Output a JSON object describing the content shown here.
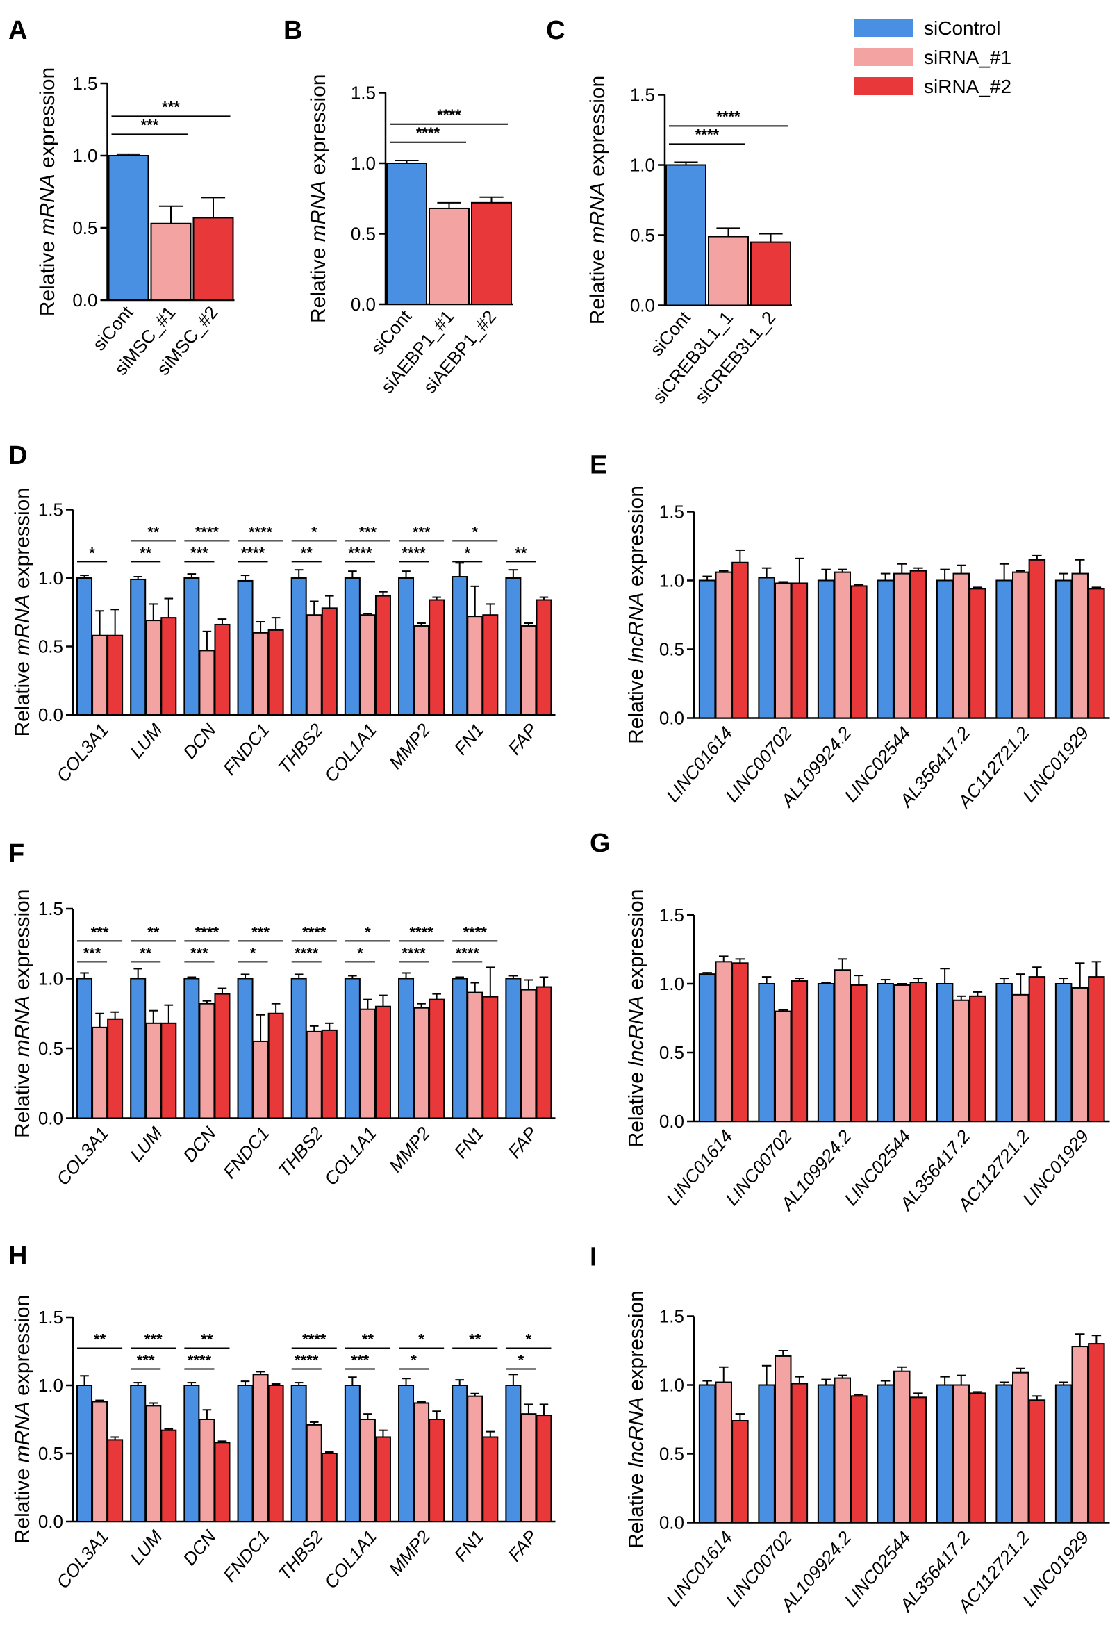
{
  "legend": {
    "items": [
      {
        "label": "siControl",
        "color": "#4a90e2"
      },
      {
        "label": "siRNA_#1",
        "color": "#f4a3a3"
      },
      {
        "label": "siRNA_#2",
        "color": "#e8383a"
      }
    ]
  },
  "colors": {
    "control": "#4a90e2",
    "si1": "#f4a3a3",
    "si2": "#e8383a"
  },
  "chart_data": [
    {
      "id": "A",
      "type": "bar",
      "ylabel_pre": "Relative ",
      "ylabel_it": "mRNA",
      "ylabel_post": " expression",
      "ylim": [
        0,
        1.5
      ],
      "yticks": [
        "0.0",
        "0.5",
        "1.0",
        "1.5"
      ],
      "categories": [
        "siCont",
        "siMSC_#1",
        "siMSC_#2"
      ],
      "values": [
        1.0,
        0.53,
        0.57
      ],
      "errors": [
        0.01,
        0.12,
        0.14
      ],
      "sig": [
        {
          "from": 0,
          "to": 1,
          "text": "***"
        },
        {
          "from": 0,
          "to": 2,
          "text": "***"
        }
      ]
    },
    {
      "id": "B",
      "type": "bar",
      "ylabel_pre": "Relative ",
      "ylabel_it": "mRNA",
      "ylabel_post": " expression",
      "ylim": [
        0,
        1.5
      ],
      "yticks": [
        "0.0",
        "0.5",
        "1.0",
        "1.5"
      ],
      "categories": [
        "siCont",
        "siAEBP1_#1",
        "siAEBP1_#2"
      ],
      "values": [
        1.0,
        0.68,
        0.72
      ],
      "errors": [
        0.02,
        0.04,
        0.04
      ],
      "sig": [
        {
          "from": 0,
          "to": 1,
          "text": "****"
        },
        {
          "from": 0,
          "to": 2,
          "text": "****"
        }
      ]
    },
    {
      "id": "C",
      "type": "bar",
      "ylabel_pre": "Relative ",
      "ylabel_it": "mRNA",
      "ylabel_post": " expression",
      "ylim": [
        0,
        1.5
      ],
      "yticks": [
        "0.0",
        "0.5",
        "1.0",
        "1.5"
      ],
      "categories": [
        "siCont",
        "siCREB3L1_1",
        "siCREB3L1_2"
      ],
      "values": [
        1.0,
        0.49,
        0.45
      ],
      "errors": [
        0.02,
        0.06,
        0.06
      ],
      "sig": [
        {
          "from": 0,
          "to": 1,
          "text": "****"
        },
        {
          "from": 0,
          "to": 2,
          "text": "****"
        }
      ]
    },
    {
      "id": "D",
      "type": "bar",
      "ylabel_pre": "Relative ",
      "ylabel_it": "mRNA",
      "ylabel_post": " expression",
      "ylim": [
        0,
        1.5
      ],
      "yticks": [
        "0.0",
        "0.5",
        "1.0",
        "1.5"
      ],
      "categories": [
        "COL3A1",
        "LUM",
        "DCN",
        "FNDC1",
        "THBS2",
        "COL1A1",
        "MMP2",
        "FN1",
        "FAP"
      ],
      "series": [
        {
          "name": "siControl",
          "values": [
            1.0,
            0.99,
            1.0,
            0.98,
            1.0,
            1.0,
            1.0,
            1.01,
            1.0
          ],
          "errors": [
            0.02,
            0.02,
            0.03,
            0.04,
            0.06,
            0.05,
            0.05,
            0.1,
            0.06
          ]
        },
        {
          "name": "siRNA_#1",
          "values": [
            0.58,
            0.69,
            0.47,
            0.6,
            0.73,
            0.73,
            0.65,
            0.72,
            0.65
          ],
          "errors": [
            0.18,
            0.12,
            0.14,
            0.08,
            0.1,
            0.01,
            0.02,
            0.22,
            0.02
          ]
        },
        {
          "name": "siRNA_#2",
          "values": [
            0.58,
            0.71,
            0.66,
            0.62,
            0.78,
            0.87,
            0.84,
            0.73,
            0.84
          ],
          "errors": [
            0.19,
            0.14,
            0.04,
            0.09,
            0.09,
            0.03,
            0.02,
            0.08,
            0.02
          ]
        }
      ],
      "sig": [
        {
          "cat": 0,
          "s1": "*",
          "s2": ""
        },
        {
          "cat": 1,
          "s1": "**",
          "s2": "**"
        },
        {
          "cat": 2,
          "s1": "***",
          "s2": "****"
        },
        {
          "cat": 3,
          "s1": "****",
          "s2": "****"
        },
        {
          "cat": 4,
          "s1": "**",
          "s2": "*"
        },
        {
          "cat": 5,
          "s1": "****",
          "s2": "***"
        },
        {
          "cat": 6,
          "s1": "****",
          "s2": "***"
        },
        {
          "cat": 7,
          "s1": "*",
          "s2": "*"
        },
        {
          "cat": 8,
          "s1": "**",
          "s2": ""
        }
      ]
    },
    {
      "id": "E",
      "type": "bar",
      "ylabel_pre": "Relative ",
      "ylabel_it": "lncRNA",
      "ylabel_post": " expression",
      "ylim": [
        0,
        1.5
      ],
      "yticks": [
        "0.0",
        "0.5",
        "1.0",
        "1.5"
      ],
      "categories": [
        "LINC01614",
        "LINC00702",
        "AL109924.2",
        "LINC02544",
        "AL356417.2",
        "AC112721.2",
        "LINC01929"
      ],
      "series": [
        {
          "name": "siControl",
          "values": [
            1.0,
            1.02,
            1.0,
            1.0,
            1.0,
            1.0,
            1.0
          ],
          "errors": [
            0.03,
            0.07,
            0.08,
            0.05,
            0.08,
            0.12,
            0.05
          ]
        },
        {
          "name": "siRNA_#1",
          "values": [
            1.06,
            0.98,
            1.06,
            1.05,
            1.05,
            1.06,
            1.05
          ],
          "errors": [
            0.01,
            0.01,
            0.02,
            0.07,
            0.06,
            0.01,
            0.1
          ]
        },
        {
          "name": "siRNA_#2",
          "values": [
            1.13,
            0.98,
            0.96,
            1.07,
            0.94,
            1.15,
            0.94
          ],
          "errors": [
            0.09,
            0.18,
            0.01,
            0.02,
            0.01,
            0.03,
            0.01
          ]
        }
      ],
      "sig": []
    },
    {
      "id": "F",
      "type": "bar",
      "ylabel_pre": "Relative ",
      "ylabel_it": "mRNA",
      "ylabel_post": " expression",
      "ylim": [
        0,
        1.5
      ],
      "yticks": [
        "0.0",
        "0.5",
        "1.0",
        "1.5"
      ],
      "categories": [
        "COL3A1",
        "LUM",
        "DCN",
        "FNDC1",
        "THBS2",
        "COL1A1",
        "MMP2",
        "FN1",
        "FAP"
      ],
      "series": [
        {
          "name": "siControl",
          "values": [
            1.0,
            1.0,
            1.0,
            1.0,
            1.0,
            1.0,
            1.0,
            1.0,
            1.0
          ],
          "errors": [
            0.04,
            0.07,
            0.01,
            0.03,
            0.03,
            0.02,
            0.04,
            0.01,
            0.02
          ]
        },
        {
          "name": "siRNA_#1",
          "values": [
            0.65,
            0.68,
            0.82,
            0.55,
            0.62,
            0.78,
            0.79,
            0.9,
            0.92
          ],
          "errors": [
            0.1,
            0.09,
            0.02,
            0.19,
            0.04,
            0.07,
            0.03,
            0.07,
            0.07
          ]
        },
        {
          "name": "siRNA_#2",
          "values": [
            0.71,
            0.68,
            0.89,
            0.75,
            0.63,
            0.8,
            0.85,
            0.87,
            0.94
          ],
          "errors": [
            0.05,
            0.13,
            0.04,
            0.07,
            0.05,
            0.08,
            0.04,
            0.21,
            0.07
          ]
        }
      ],
      "sig": [
        {
          "cat": 0,
          "s1": "***",
          "s2": "***"
        },
        {
          "cat": 1,
          "s1": "**",
          "s2": "**"
        },
        {
          "cat": 2,
          "s1": "***",
          "s2": "****"
        },
        {
          "cat": 3,
          "s1": "*",
          "s2": "***"
        },
        {
          "cat": 4,
          "s1": "****",
          "s2": "****"
        },
        {
          "cat": 5,
          "s1": "*",
          "s2": "*"
        },
        {
          "cat": 6,
          "s1": "****",
          "s2": "****"
        },
        {
          "cat": 7,
          "s1": "****",
          "s2": "****"
        },
        {
          "cat": 8,
          "s1": "",
          "s2": ""
        }
      ]
    },
    {
      "id": "G",
      "type": "bar",
      "ylabel_pre": "Relative ",
      "ylabel_it": "lncRNA",
      "ylabel_post": " expression",
      "ylim": [
        0,
        1.5
      ],
      "yticks": [
        "0.0",
        "0.5",
        "1.0",
        "1.5"
      ],
      "categories": [
        "LINC01614",
        "LINC00702",
        "AL109924.2",
        "LINC02544",
        "AL356417.2",
        "AC112721.2",
        "LINC01929"
      ],
      "series": [
        {
          "name": "siControl",
          "values": [
            1.07,
            1.0,
            1.0,
            1.0,
            1.0,
            1.0,
            1.0
          ],
          "errors": [
            0.01,
            0.05,
            0.01,
            0.03,
            0.11,
            0.04,
            0.04
          ]
        },
        {
          "name": "siRNA_#1",
          "values": [
            1.16,
            0.8,
            1.1,
            0.99,
            0.88,
            0.92,
            0.97
          ],
          "errors": [
            0.04,
            0.01,
            0.08,
            0.01,
            0.03,
            0.15,
            0.18
          ]
        },
        {
          "name": "siRNA_#2",
          "values": [
            1.15,
            1.02,
            0.99,
            1.01,
            0.91,
            1.05,
            1.05
          ],
          "errors": [
            0.03,
            0.02,
            0.07,
            0.03,
            0.03,
            0.07,
            0.11
          ]
        }
      ],
      "sig": []
    },
    {
      "id": "H",
      "type": "bar",
      "ylabel_pre": "Relative ",
      "ylabel_it": "mRNA",
      "ylabel_post": " expression",
      "ylim": [
        0,
        1.5
      ],
      "yticks": [
        "0.0",
        "0.5",
        "1.0",
        "1.5"
      ],
      "categories": [
        "COL3A1",
        "LUM",
        "DCN",
        "FNDC1",
        "THBS2",
        "COL1A1",
        "MMP2",
        "FN1",
        "FAP"
      ],
      "series": [
        {
          "name": "siControl",
          "values": [
            1.0,
            1.0,
            1.0,
            1.0,
            1.0,
            1.0,
            1.0,
            1.0,
            1.0
          ],
          "errors": [
            0.07,
            0.02,
            0.02,
            0.03,
            0.02,
            0.06,
            0.05,
            0.04,
            0.08
          ]
        },
        {
          "name": "siRNA_#1",
          "values": [
            0.88,
            0.85,
            0.75,
            1.08,
            0.71,
            0.75,
            0.87,
            0.92,
            0.79
          ],
          "errors": [
            0.01,
            0.02,
            0.07,
            0.02,
            0.02,
            0.04,
            0.01,
            0.02,
            0.07
          ]
        },
        {
          "name": "siRNA_#2",
          "values": [
            0.6,
            0.67,
            0.58,
            1.0,
            0.5,
            0.62,
            0.75,
            0.62,
            0.78
          ],
          "errors": [
            0.02,
            0.01,
            0.01,
            0.01,
            0.01,
            0.05,
            0.06,
            0.04,
            0.08
          ]
        }
      ],
      "sig": [
        {
          "cat": 0,
          "s1": "",
          "s2": "**"
        },
        {
          "cat": 1,
          "s1": "***",
          "s2": "***"
        },
        {
          "cat": 2,
          "s1": "****",
          "s2": "**"
        },
        {
          "cat": 3,
          "s1": "",
          "s2": ""
        },
        {
          "cat": 4,
          "s1": "****",
          "s2": "****"
        },
        {
          "cat": 5,
          "s1": "***",
          "s2": "**"
        },
        {
          "cat": 6,
          "s1": "*",
          "s2": "*"
        },
        {
          "cat": 7,
          "s1": "",
          "s2": "**"
        },
        {
          "cat": 8,
          "s1": "*",
          "s2": "*"
        }
      ]
    },
    {
      "id": "I",
      "type": "bar",
      "ylabel_pre": "Relative ",
      "ylabel_it": "lncRNA",
      "ylabel_post": " expression",
      "ylim": [
        0,
        1.5
      ],
      "yticks": [
        "0.0",
        "0.5",
        "1.0",
        "1.5"
      ],
      "categories": [
        "LINC01614",
        "LINC00702",
        "AL109924.2",
        "LINC02544",
        "AL356417.2",
        "AC112721.2",
        "LINC01929"
      ],
      "series": [
        {
          "name": "siControl",
          "values": [
            1.0,
            1.0,
            1.0,
            1.0,
            1.0,
            1.0,
            1.0
          ],
          "errors": [
            0.03,
            0.14,
            0.04,
            0.03,
            0.06,
            0.02,
            0.02
          ]
        },
        {
          "name": "siRNA_#1",
          "values": [
            1.02,
            1.21,
            1.05,
            1.1,
            1.0,
            1.09,
            1.28
          ],
          "errors": [
            0.11,
            0.04,
            0.02,
            0.03,
            0.07,
            0.03,
            0.09
          ]
        },
        {
          "name": "siRNA_#2",
          "values": [
            0.74,
            1.01,
            0.92,
            0.91,
            0.94,
            0.89,
            1.3
          ],
          "errors": [
            0.05,
            0.05,
            0.01,
            0.03,
            0.01,
            0.03,
            0.06
          ]
        }
      ],
      "sig": []
    }
  ]
}
